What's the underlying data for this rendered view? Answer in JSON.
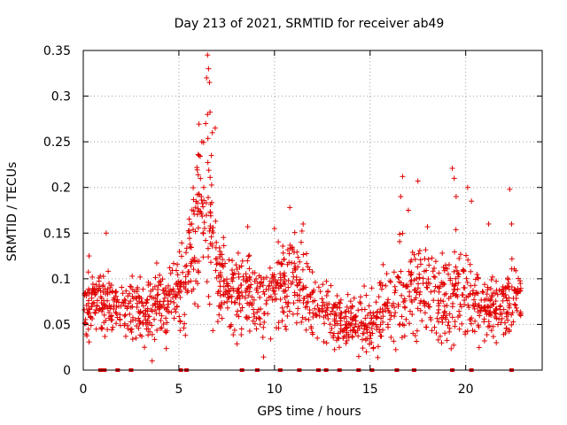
{
  "chart_data": {
    "type": "scatter",
    "title": "Day 213 of 2021, SRMTID for receiver ab49",
    "xlabel": "GPS time / hours",
    "ylabel": "SRMTID / TECUs",
    "xlim": [
      0,
      24.0
    ],
    "ylim": [
      0,
      0.35
    ],
    "xticks": [
      0,
      5,
      10,
      15,
      20
    ],
    "yticks": [
      0,
      0.05,
      0.1,
      0.15,
      0.2,
      0.25,
      0.3,
      0.35
    ],
    "ytick_labels": [
      "0",
      "0.05",
      "0.1",
      "0.15",
      "0.2",
      "0.25",
      "0.3",
      "0.35"
    ],
    "grid": true,
    "marker": "+",
    "color": "#e00000",
    "profile": [
      {
        "x": 0.0,
        "base": 0.068,
        "spread": 0.03
      },
      {
        "x": 0.6,
        "base": 0.072,
        "spread": 0.03
      },
      {
        "x": 1.2,
        "base": 0.075,
        "spread": 0.035
      },
      {
        "x": 1.8,
        "base": 0.065,
        "spread": 0.025
      },
      {
        "x": 2.5,
        "base": 0.072,
        "spread": 0.035
      },
      {
        "x": 3.2,
        "base": 0.06,
        "spread": 0.03
      },
      {
        "x": 4.0,
        "base": 0.072,
        "spread": 0.035
      },
      {
        "x": 4.6,
        "base": 0.075,
        "spread": 0.035
      },
      {
        "x": 5.2,
        "base": 0.09,
        "spread": 0.04
      },
      {
        "x": 5.7,
        "base": 0.14,
        "spread": 0.06
      },
      {
        "x": 6.1,
        "base": 0.18,
        "spread": 0.08
      },
      {
        "x": 6.5,
        "base": 0.17,
        "spread": 0.09
      },
      {
        "x": 7.0,
        "base": 0.11,
        "spread": 0.05
      },
      {
        "x": 7.8,
        "base": 0.085,
        "spread": 0.04
      },
      {
        "x": 8.6,
        "base": 0.09,
        "spread": 0.04
      },
      {
        "x": 9.4,
        "base": 0.08,
        "spread": 0.04
      },
      {
        "x": 10.2,
        "base": 0.085,
        "spread": 0.04
      },
      {
        "x": 11.0,
        "base": 0.095,
        "spread": 0.045
      },
      {
        "x": 11.8,
        "base": 0.08,
        "spread": 0.04
      },
      {
        "x": 12.6,
        "base": 0.07,
        "spread": 0.035
      },
      {
        "x": 13.4,
        "base": 0.055,
        "spread": 0.028
      },
      {
        "x": 14.2,
        "base": 0.05,
        "spread": 0.028
      },
      {
        "x": 15.0,
        "base": 0.05,
        "spread": 0.028
      },
      {
        "x": 15.8,
        "base": 0.065,
        "spread": 0.035
      },
      {
        "x": 16.6,
        "base": 0.08,
        "spread": 0.045
      },
      {
        "x": 17.4,
        "base": 0.09,
        "spread": 0.045
      },
      {
        "x": 18.2,
        "base": 0.085,
        "spread": 0.045
      },
      {
        "x": 19.0,
        "base": 0.075,
        "spread": 0.045
      },
      {
        "x": 19.6,
        "base": 0.09,
        "spread": 0.05
      },
      {
        "x": 20.2,
        "base": 0.08,
        "spread": 0.04
      },
      {
        "x": 21.0,
        "base": 0.065,
        "spread": 0.03
      },
      {
        "x": 21.8,
        "base": 0.07,
        "spread": 0.035
      },
      {
        "x": 22.6,
        "base": 0.08,
        "spread": 0.035
      }
    ],
    "x_range": [
      0.05,
      22.9
    ],
    "n_points": 1500,
    "outliers": [
      {
        "x": 6.5,
        "y": 0.345
      },
      {
        "x": 6.55,
        "y": 0.33
      },
      {
        "x": 6.45,
        "y": 0.32
      },
      {
        "x": 6.6,
        "y": 0.315
      },
      {
        "x": 6.5,
        "y": 0.28
      },
      {
        "x": 6.4,
        "y": 0.27
      },
      {
        "x": 6.2,
        "y": 0.25
      },
      {
        "x": 6.75,
        "y": 0.26
      },
      {
        "x": 6.9,
        "y": 0.265
      },
      {
        "x": 6.05,
        "y": 0.235
      },
      {
        "x": 6.7,
        "y": 0.235
      },
      {
        "x": 6.3,
        "y": 0.2
      },
      {
        "x": 19.3,
        "y": 0.221
      },
      {
        "x": 19.4,
        "y": 0.21
      },
      {
        "x": 16.7,
        "y": 0.212
      },
      {
        "x": 17.5,
        "y": 0.207
      },
      {
        "x": 20.1,
        "y": 0.2
      },
      {
        "x": 22.3,
        "y": 0.198
      },
      {
        "x": 16.6,
        "y": 0.19
      },
      {
        "x": 19.5,
        "y": 0.19
      },
      {
        "x": 20.3,
        "y": 0.185
      },
      {
        "x": 10.8,
        "y": 0.178
      },
      {
        "x": 17.0,
        "y": 0.175
      },
      {
        "x": 22.4,
        "y": 0.16
      },
      {
        "x": 1.2,
        "y": 0.15
      },
      {
        "x": 10.0,
        "y": 0.155
      },
      {
        "x": 3.6,
        "y": 0.01
      },
      {
        "x": 3.2,
        "y": 0.025
      },
      {
        "x": 14.8,
        "y": 0.02
      },
      {
        "x": 21.6,
        "y": 0.03
      },
      {
        "x": 0.3,
        "y": 0.125
      },
      {
        "x": 8.6,
        "y": 0.157
      },
      {
        "x": 11.5,
        "y": 0.16
      },
      {
        "x": 18.0,
        "y": 0.157
      },
      {
        "x": 21.2,
        "y": 0.16
      }
    ],
    "zero_ticks_x": [
      0.9,
      1.0,
      1.1,
      1.8,
      2.5,
      5.1,
      5.4,
      8.3,
      9.1,
      10.3,
      11.3,
      12.3,
      12.7,
      13.4,
      14.4,
      15.1,
      16.4,
      17.3,
      19.3,
      20.3,
      22.4
    ]
  }
}
